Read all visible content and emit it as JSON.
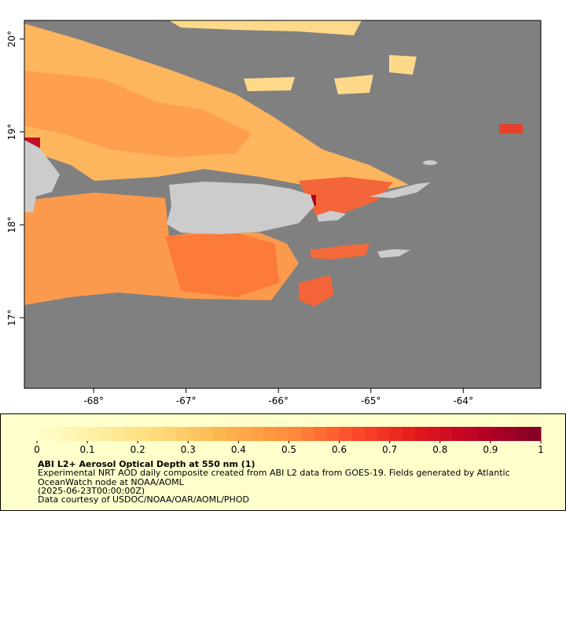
{
  "map": {
    "xlim": [
      -68.75,
      -63.16
    ],
    "ylim": [
      16.24,
      20.2
    ],
    "xticks": [
      {
        "value": -68,
        "label": "-68°"
      },
      {
        "value": -67,
        "label": "-67°"
      },
      {
        "value": -66,
        "label": "-66°"
      },
      {
        "value": -65,
        "label": "-65°"
      },
      {
        "value": -64,
        "label": "-64°"
      }
    ],
    "yticks": [
      {
        "value": 20,
        "label": "20°"
      },
      {
        "value": 19,
        "label": "19°"
      },
      {
        "value": 18,
        "label": "18°"
      },
      {
        "value": 17,
        "label": "17°"
      }
    ]
  },
  "colorbar": {
    "lim": [
      0,
      1
    ],
    "ticks": [
      0,
      0.1,
      0.2,
      0.3,
      0.4,
      0.5,
      0.6,
      0.7,
      0.8,
      0.9,
      1
    ],
    "colors": [
      "#ffffcc",
      "#ffeda0",
      "#fed976",
      "#feb24c",
      "#fd8d3c",
      "#fc4e2a",
      "#e31a1c",
      "#bd0026",
      "#800026"
    ],
    "steps": 40
  },
  "legend": {
    "title": "ABI L2+ Aerosol Optical Depth at 550 nm (1)",
    "lines": [
      "Experimental NRT AOD daily composite created from ABI L2 data from GOES-19. Fields generated by Atlantic",
      "OceanWatch node at NOAA/AOML",
      "(2025-06-23T00:00:00Z)",
      "Data courtesy of USDOC/NOAA/OAR/AOML/PHOD"
    ]
  }
}
